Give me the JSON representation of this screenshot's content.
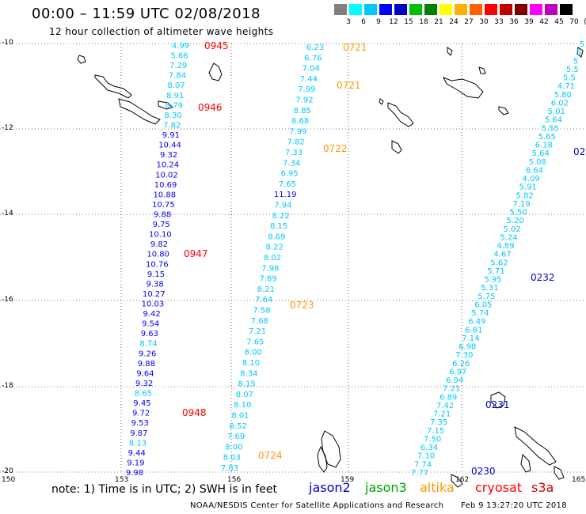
{
  "header": {
    "title": "00:00 – 11:59 UTC 02/08/2018",
    "subtitle": "12 hour collection of altimeter wave heights"
  },
  "legend": {
    "colors": [
      "#808080",
      "#00ffff",
      "#00c8ff",
      "#0000ff",
      "#0000c0",
      "#00c000",
      "#008000",
      "#ffff00",
      "#ffb000",
      "#ff6000",
      "#ff0000",
      "#c00000",
      "#800000",
      "#ff00ff",
      "#c000c0",
      "#000000"
    ],
    "labels": [
      "3",
      "6",
      "9",
      "12",
      "15",
      "18",
      "21",
      "24",
      "27",
      "30",
      "33",
      "36",
      "39",
      "42",
      "45",
      "70",
      "(ft)"
    ]
  },
  "map": {
    "lat_labels": [
      "-10",
      "-12",
      "-14",
      "-16",
      "-18",
      "-20"
    ],
    "lon_labels": [
      "150",
      "153",
      "156",
      "159",
      "162",
      "165"
    ],
    "coastline_color": "#000000",
    "grid_color": "#000000"
  },
  "tracks": [
    {
      "satellite": "cryosat",
      "time_labels": [
        {
          "text": "0945",
          "color": "#ff0000"
        },
        {
          "text": "0946",
          "color": "#ff0000"
        },
        {
          "text": "0947",
          "color": "#ff0000"
        },
        {
          "text": "0948",
          "color": "#ff0000"
        }
      ],
      "values": [
        {
          "v": "4.99",
          "c": "#00c8ff"
        },
        {
          "v": "5.66",
          "c": "#00c8ff"
        },
        {
          "v": "7.29",
          "c": "#00c8ff"
        },
        {
          "v": "7.84",
          "c": "#00c8ff"
        },
        {
          "v": "8.07",
          "c": "#00c8ff"
        },
        {
          "v": "8.91",
          "c": "#00c8ff"
        },
        {
          "v": "8.79",
          "c": "#00c8ff"
        },
        {
          "v": "8.30",
          "c": "#00c8ff"
        },
        {
          "v": "7.82",
          "c": "#00c8ff"
        },
        {
          "v": "9.91",
          "c": "#0000ff"
        },
        {
          "v": "10.44",
          "c": "#0000ff"
        },
        {
          "v": "9.32",
          "c": "#0000ff"
        },
        {
          "v": "10.24",
          "c": "#0000ff"
        },
        {
          "v": "10.02",
          "c": "#0000ff"
        },
        {
          "v": "10.69",
          "c": "#0000ff"
        },
        {
          "v": "10.88",
          "c": "#0000ff"
        },
        {
          "v": "10.75",
          "c": "#0000ff"
        },
        {
          "v": "9.88",
          "c": "#0000ff"
        },
        {
          "v": "9.75",
          "c": "#0000ff"
        },
        {
          "v": "10.10",
          "c": "#0000ff"
        },
        {
          "v": "9.82",
          "c": "#0000ff"
        },
        {
          "v": "10.80",
          "c": "#0000ff"
        },
        {
          "v": "10.76",
          "c": "#0000ff"
        },
        {
          "v": "9.15",
          "c": "#0000ff"
        },
        {
          "v": "9.38",
          "c": "#0000ff"
        },
        {
          "v": "10.27",
          "c": "#0000ff"
        },
        {
          "v": "10.03",
          "c": "#0000ff"
        },
        {
          "v": "9.42",
          "c": "#0000ff"
        },
        {
          "v": "9.54",
          "c": "#0000ff"
        },
        {
          "v": "9.63",
          "c": "#0000ff"
        },
        {
          "v": "8.74",
          "c": "#00c8ff"
        },
        {
          "v": "9.26",
          "c": "#0000ff"
        },
        {
          "v": "9.88",
          "c": "#0000ff"
        },
        {
          "v": "9.64",
          "c": "#0000ff"
        },
        {
          "v": "9.32",
          "c": "#0000ff"
        },
        {
          "v": "8.65",
          "c": "#00c8ff"
        },
        {
          "v": "9.45",
          "c": "#0000ff"
        },
        {
          "v": "9.72",
          "c": "#0000ff"
        },
        {
          "v": "9.53",
          "c": "#0000ff"
        },
        {
          "v": "9.87",
          "c": "#0000ff"
        },
        {
          "v": "8.13",
          "c": "#00c8ff"
        },
        {
          "v": "9.44",
          "c": "#0000ff"
        },
        {
          "v": "9.19",
          "c": "#0000ff"
        },
        {
          "v": "9.98",
          "c": "#0000ff"
        }
      ]
    },
    {
      "satellite": "altika",
      "time_labels": [
        {
          "text": "0721",
          "color": "#ff9900"
        },
        {
          "text": "0721",
          "color": "#ff9900"
        },
        {
          "text": "0722",
          "color": "#ff9900"
        },
        {
          "text": "0723",
          "color": "#ff9900"
        },
        {
          "text": "0724",
          "color": "#ff9900"
        }
      ],
      "values": [
        {
          "v": "6.23",
          "c": "#00c8ff"
        },
        {
          "v": "6.76",
          "c": "#00c8ff"
        },
        {
          "v": "7.04",
          "c": "#00c8ff"
        },
        {
          "v": "7.44",
          "c": "#00c8ff"
        },
        {
          "v": "7.99",
          "c": "#00c8ff"
        },
        {
          "v": "7.92",
          "c": "#00c8ff"
        },
        {
          "v": "8.85",
          "c": "#00c8ff"
        },
        {
          "v": "8.68",
          "c": "#00c8ff"
        },
        {
          "v": "7.99",
          "c": "#00c8ff"
        },
        {
          "v": "7.82",
          "c": "#00c8ff"
        },
        {
          "v": "7.33",
          "c": "#00c8ff"
        },
        {
          "v": "7.34",
          "c": "#00c8ff"
        },
        {
          "v": "6.95",
          "c": "#00c8ff"
        },
        {
          "v": "7.65",
          "c": "#00c8ff"
        },
        {
          "v": "11.19",
          "c": "#0000ff"
        },
        {
          "v": "7.94",
          "c": "#00c8ff"
        },
        {
          "v": "8.22",
          "c": "#00c8ff"
        },
        {
          "v": "8.15",
          "c": "#00c8ff"
        },
        {
          "v": "8.69",
          "c": "#00c8ff"
        },
        {
          "v": "8.22",
          "c": "#00c8ff"
        },
        {
          "v": "8.02",
          "c": "#00c8ff"
        },
        {
          "v": "7.98",
          "c": "#00c8ff"
        },
        {
          "v": "7.89",
          "c": "#00c8ff"
        },
        {
          "v": "8.21",
          "c": "#00c8ff"
        },
        {
          "v": "7.64",
          "c": "#00c8ff"
        },
        {
          "v": "7.58",
          "c": "#00c8ff"
        },
        {
          "v": "7.68",
          "c": "#00c8ff"
        },
        {
          "v": "7.21",
          "c": "#00c8ff"
        },
        {
          "v": "7.65",
          "c": "#00c8ff"
        },
        {
          "v": "8.00",
          "c": "#00c8ff"
        },
        {
          "v": "8.10",
          "c": "#00c8ff"
        },
        {
          "v": "8.34",
          "c": "#00c8ff"
        },
        {
          "v": "8.15",
          "c": "#00c8ff"
        },
        {
          "v": "8.07",
          "c": "#00c8ff"
        },
        {
          "v": "8.10",
          "c": "#00c8ff"
        },
        {
          "v": "8.01",
          "c": "#00c8ff"
        },
        {
          "v": "8.52",
          "c": "#00c8ff"
        },
        {
          "v": "7.69",
          "c": "#00c8ff"
        },
        {
          "v": "8.00",
          "c": "#00c8ff"
        },
        {
          "v": "8.03",
          "c": "#00c8ff"
        },
        {
          "v": "7.83",
          "c": "#00c8ff"
        }
      ]
    },
    {
      "satellite": "jason2",
      "time_labels": [
        {
          "text": "02",
          "color": "#0000c8"
        },
        {
          "text": "0232",
          "color": "#0000c8"
        },
        {
          "text": "0231",
          "color": "#0000c8"
        },
        {
          "text": "0230",
          "color": "#0000c8"
        }
      ],
      "values": [
        {
          "v": "5",
          "c": "#00c8ff"
        },
        {
          "v": "5",
          "c": "#00c8ff"
        },
        {
          "v": "5",
          "c": "#00c8ff"
        },
        {
          "v": "5.5",
          "c": "#00c8ff"
        },
        {
          "v": "5.5",
          "c": "#00c8ff"
        },
        {
          "v": "4.71",
          "c": "#00c8ff"
        },
        {
          "v": "5.80",
          "c": "#00c8ff"
        },
        {
          "v": "6.02",
          "c": "#00c8ff"
        },
        {
          "v": "5.01",
          "c": "#00c8ff"
        },
        {
          "v": "5.64",
          "c": "#00c8ff"
        },
        {
          "v": "5.55",
          "c": "#00c8ff"
        },
        {
          "v": "5.65",
          "c": "#00c8ff"
        },
        {
          "v": "6.18",
          "c": "#00c8ff"
        },
        {
          "v": "5.64",
          "c": "#00c8ff"
        },
        {
          "v": "5.08",
          "c": "#00c8ff"
        },
        {
          "v": "6.64",
          "c": "#00c8ff"
        },
        {
          "v": "4.09",
          "c": "#00c8ff"
        },
        {
          "v": "5.91",
          "c": "#00c8ff"
        },
        {
          "v": "5.82",
          "c": "#00c8ff"
        },
        {
          "v": "7.19",
          "c": "#00c8ff"
        },
        {
          "v": "5.50",
          "c": "#00c8ff"
        },
        {
          "v": "5.20",
          "c": "#00c8ff"
        },
        {
          "v": "5.02",
          "c": "#00c8ff"
        },
        {
          "v": "5.24",
          "c": "#00c8ff"
        },
        {
          "v": "4.89",
          "c": "#00c8ff"
        },
        {
          "v": "4.67",
          "c": "#00c8ff"
        },
        {
          "v": "5.62",
          "c": "#00c8ff"
        },
        {
          "v": "5.71",
          "c": "#00c8ff"
        },
        {
          "v": "5.95",
          "c": "#00c8ff"
        },
        {
          "v": "5.31",
          "c": "#00c8ff"
        },
        {
          "v": "5.75",
          "c": "#00c8ff"
        },
        {
          "v": "6.05",
          "c": "#00c8ff"
        },
        {
          "v": "5.74",
          "c": "#00c8ff"
        },
        {
          "v": "6.49",
          "c": "#00c8ff"
        },
        {
          "v": "6.81",
          "c": "#00c8ff"
        },
        {
          "v": "7.14",
          "c": "#00c8ff"
        },
        {
          "v": "6.98",
          "c": "#00c8ff"
        },
        {
          "v": "7.30",
          "c": "#00c8ff"
        },
        {
          "v": "6.26",
          "c": "#00c8ff"
        },
        {
          "v": "6.97",
          "c": "#00c8ff"
        },
        {
          "v": "6.94",
          "c": "#00c8ff"
        },
        {
          "v": "7.21",
          "c": "#00c8ff"
        },
        {
          "v": "6.89",
          "c": "#00c8ff"
        },
        {
          "v": "7.42",
          "c": "#00c8ff"
        },
        {
          "v": "7.21",
          "c": "#00c8ff"
        },
        {
          "v": "7.35",
          "c": "#00c8ff"
        },
        {
          "v": "7.15",
          "c": "#00c8ff"
        },
        {
          "v": "7.50",
          "c": "#00c8ff"
        },
        {
          "v": "6.34",
          "c": "#00c8ff"
        },
        {
          "v": "7.10",
          "c": "#00c8ff"
        },
        {
          "v": "7.74",
          "c": "#00c8ff"
        },
        {
          "v": "7.77",
          "c": "#00c8ff"
        }
      ]
    }
  ],
  "note": "note: 1) Time is in UTC; 2) SWH is in feet",
  "satellites": [
    {
      "name": "jason2",
      "color": "#0000cc"
    },
    {
      "name": "jason3",
      "color": "#00a000"
    },
    {
      "name": "altika",
      "color": "#ff9900"
    },
    {
      "name": "cryosat",
      "color": "#ff0000"
    },
    {
      "name": "s3a",
      "color": "#cc0000"
    }
  ],
  "footer": {
    "credit": "NOAA/NESDIS Center for Satellite Applications and Research",
    "timestamp": "Feb 9 13:27:20 UTC 2018"
  }
}
